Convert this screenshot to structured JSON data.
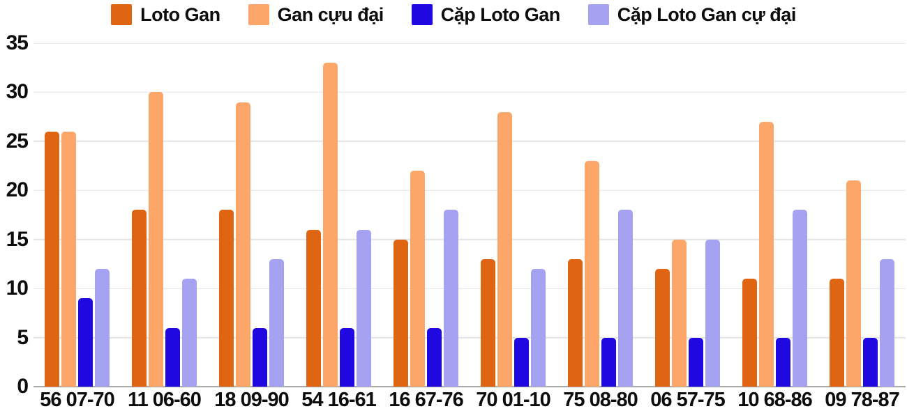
{
  "chart_data": {
    "type": "bar",
    "title": "",
    "xlabel": "",
    "ylabel": "",
    "categories": [
      "56 07-70",
      "11 06-60",
      "18 09-90",
      "54 16-61",
      "16 67-76",
      "70 01-10",
      "75 08-80",
      "06 57-75",
      "10 68-86",
      "09 78-87"
    ],
    "series": [
      {
        "name": "Loto Gan",
        "color": "#df6512",
        "values": [
          26,
          18,
          18,
          16,
          15,
          13,
          13,
          12,
          11,
          11
        ]
      },
      {
        "name": "Gan cựu đại",
        "color": "#fca66a",
        "values": [
          26,
          30,
          29,
          33,
          22,
          28,
          23,
          15,
          27,
          21
        ]
      },
      {
        "name": "Cặp Loto Gan",
        "color": "#2008e0",
        "values": [
          9,
          6,
          6,
          6,
          6,
          5,
          5,
          5,
          5,
          5
        ]
      },
      {
        "name": "Cặp Loto Gan cự đại",
        "color": "#a5a2f2",
        "values": [
          12,
          11,
          13,
          16,
          18,
          12,
          18,
          15,
          18,
          13
        ]
      }
    ],
    "ylim": [
      0,
      35
    ],
    "yticks": [
      0,
      5,
      10,
      15,
      20,
      25,
      30,
      35
    ],
    "grid": true,
    "grid_color": "#e4e4e4",
    "zero_line_color": "#ababab",
    "text_color": "#0d0d0d",
    "legend_position": "top"
  }
}
